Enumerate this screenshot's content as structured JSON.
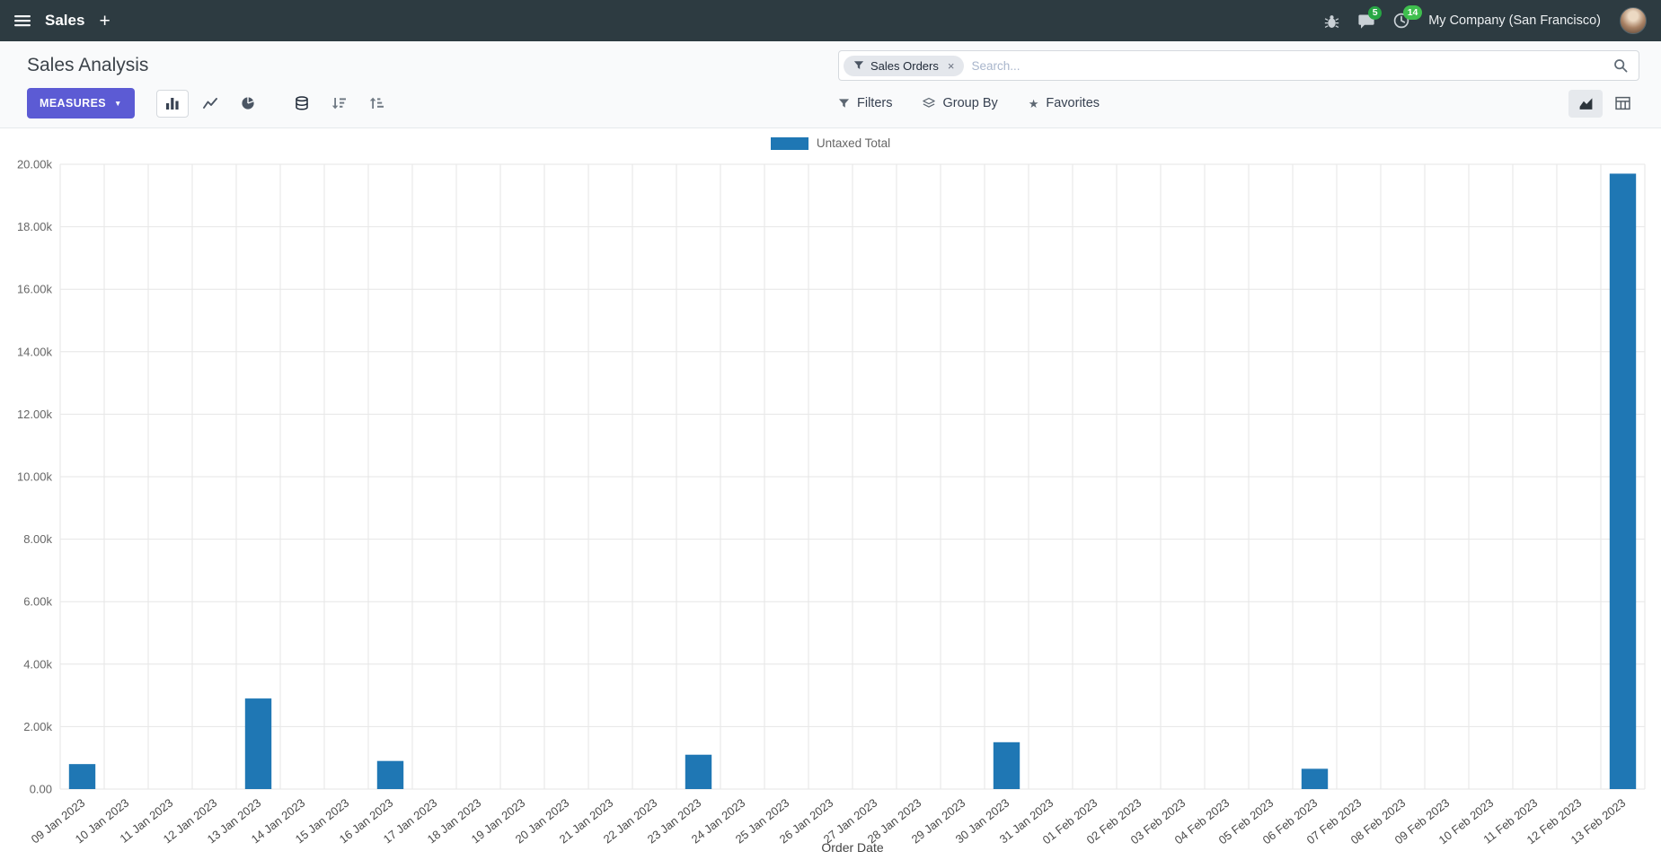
{
  "colors": {
    "navbar-bg": "#2d3b41",
    "primary-button": "#5c5bd4",
    "badge-green": "#28a745",
    "badge-green2": "#3fbf4e"
  },
  "navbar": {
    "app_name": "Sales",
    "plus_label": "+",
    "chat_badge": "5",
    "activity_badge": "14",
    "company": "My Company (San Francisco)"
  },
  "control_panel": {
    "title": "Sales Analysis",
    "measures_label": "MEASURES",
    "filters_label": "Filters",
    "groupby_label": "Group By",
    "favorites_label": "Favorites",
    "search": {
      "facet": "Sales Orders",
      "facet_remove": "×",
      "placeholder": "Search..."
    }
  },
  "chart_data": {
    "type": "bar",
    "title": "",
    "legend_label": "Untaxed Total",
    "series_color": "#1f77b4",
    "xlabel": "Order Date",
    "ylabel": "",
    "ylim": [
      0,
      20000
    ],
    "ytick_step": 2000,
    "ytick_labels": [
      "0.00",
      "2.00k",
      "4.00k",
      "6.00k",
      "8.00k",
      "10.00k",
      "12.00k",
      "14.00k",
      "16.00k",
      "18.00k",
      "20.00k"
    ],
    "grid": true,
    "legend_position": "top",
    "categories": [
      "09 Jan 2023",
      "10 Jan 2023",
      "11 Jan 2023",
      "12 Jan 2023",
      "13 Jan 2023",
      "14 Jan 2023",
      "15 Jan 2023",
      "16 Jan 2023",
      "17 Jan 2023",
      "18 Jan 2023",
      "19 Jan 2023",
      "20 Jan 2023",
      "21 Jan 2023",
      "22 Jan 2023",
      "23 Jan 2023",
      "24 Jan 2023",
      "25 Jan 2023",
      "26 Jan 2023",
      "27 Jan 2023",
      "28 Jan 2023",
      "29 Jan 2023",
      "30 Jan 2023",
      "31 Jan 2023",
      "01 Feb 2023",
      "02 Feb 2023",
      "03 Feb 2023",
      "04 Feb 2023",
      "05 Feb 2023",
      "06 Feb 2023",
      "07 Feb 2023",
      "08 Feb 2023",
      "09 Feb 2023",
      "10 Feb 2023",
      "11 Feb 2023",
      "12 Feb 2023",
      "13 Feb 2023"
    ],
    "values": [
      800,
      0,
      0,
      0,
      2900,
      0,
      0,
      900,
      0,
      0,
      0,
      0,
      0,
      0,
      1100,
      0,
      0,
      0,
      0,
      0,
      0,
      1500,
      0,
      0,
      0,
      0,
      0,
      0,
      650,
      0,
      0,
      0,
      0,
      0,
      0,
      19700
    ]
  }
}
